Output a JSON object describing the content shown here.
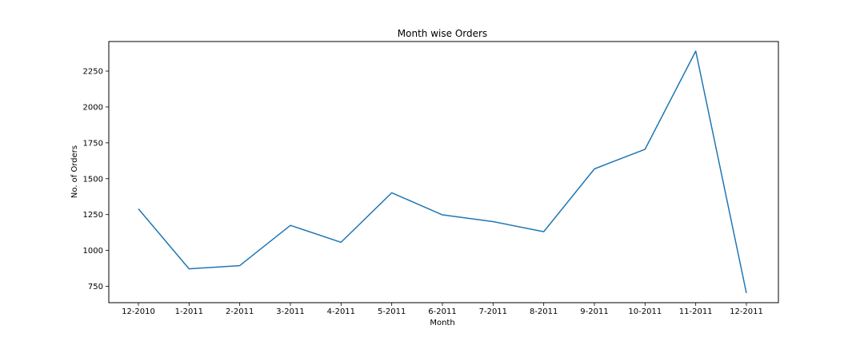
{
  "chart_data": {
    "type": "line",
    "title": "Month wise Orders",
    "xlabel": "Month",
    "ylabel": "No. of Orders",
    "categories": [
      "12-2010",
      "1-2011",
      "2-2011",
      "3-2011",
      "4-2011",
      "5-2011",
      "6-2011",
      "7-2011",
      "8-2011",
      "9-2011",
      "10-2011",
      "11-2011",
      "12-2011"
    ],
    "series": [
      {
        "values": [
          1290,
          872,
          894,
          1175,
          1057,
          1402,
          1248,
          1201,
          1131,
          1568,
          1705,
          2389,
          703
        ],
        "color": "#1f77b4"
      }
    ],
    "ylim": [
      636,
      2456
    ],
    "yticks": [
      750,
      1000,
      1250,
      1500,
      1750,
      2000,
      2250
    ],
    "grid": false,
    "legend": "none"
  }
}
